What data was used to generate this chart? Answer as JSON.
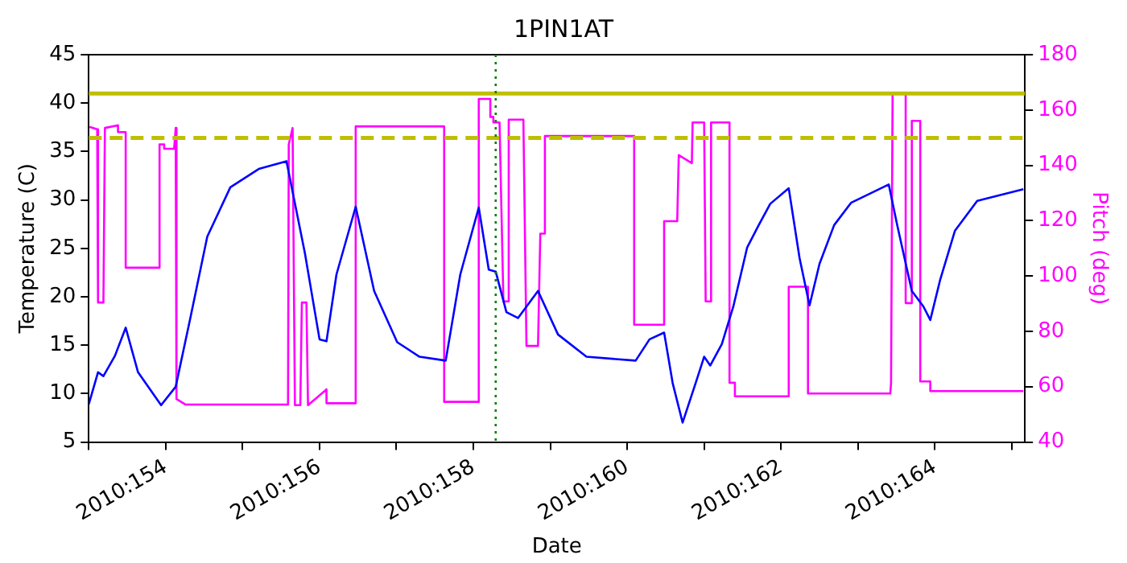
{
  "chart_data": {
    "type": "line",
    "title": "1PIN1AT",
    "xlabel": "Date",
    "ylabel": "Temperature (C)",
    "y2label": "Pitch (deg)",
    "xlim": [
      "2010-06-02T00:00",
      "2010-06-14T04:05"
    ],
    "xticks": [
      {
        "value": "2010-06-02",
        "label": null
      },
      {
        "value": "2010-06-03",
        "label": "2010:154"
      },
      {
        "value": "2010-06-04",
        "label": null
      },
      {
        "value": "2010-06-05",
        "label": "2010:156"
      },
      {
        "value": "2010-06-06",
        "label": null
      },
      {
        "value": "2010-06-07",
        "label": "2010:158"
      },
      {
        "value": "2010-06-08",
        "label": null
      },
      {
        "value": "2010-06-09",
        "label": "2010:160"
      },
      {
        "value": "2010-06-10",
        "label": null
      },
      {
        "value": "2010-06-11",
        "label": "2010:162"
      },
      {
        "value": "2010-06-12",
        "label": null
      },
      {
        "value": "2010-06-13",
        "label": "2010:164"
      },
      {
        "value": "2010-06-14",
        "label": null
      }
    ],
    "ylim": [
      5,
      45
    ],
    "yticks": [
      5,
      10,
      15,
      20,
      25,
      30,
      35,
      40,
      45
    ],
    "y2lim": [
      40,
      180
    ],
    "y2ticks": [
      40,
      60,
      80,
      100,
      120,
      140,
      160,
      180
    ],
    "grid": false,
    "marker": "none",
    "line_style": "solid",
    "series": [
      {
        "color": "#0000ff",
        "axis": "y",
        "x": [
          "2010-06-02T00:00",
          "2010-06-02T02:53",
          "2010-06-02T04:34",
          "2010-06-02T08:10",
          "2010-06-02T11:31",
          "2010-06-02T15:22",
          "2010-06-02T22:34",
          "2010-06-03T03:07",
          "2010-06-03T07:41",
          "2010-06-03T12:58",
          "2010-06-03T20:10",
          "2010-06-04T05:02",
          "2010-06-04T13:41",
          "2010-06-04T19:26",
          "2010-06-05T00:00",
          "2010-06-05T02:10",
          "2010-06-05T05:17",
          "2010-06-05T11:17",
          "2010-06-05T17:02",
          "2010-06-06T00:14",
          "2010-06-06T07:12",
          "2010-06-06T15:22",
          "2010-06-06T19:55",
          "2010-06-07T01:41",
          "2010-06-07T04:48",
          "2010-06-07T06:58",
          "2010-06-07T10:19",
          "2010-06-07T13:55",
          "2010-06-07T20:10",
          "2010-06-08T02:24",
          "2010-06-08T11:17",
          "2010-06-09T02:38",
          "2010-06-09T06:58",
          "2010-06-09T11:31",
          "2010-06-09T14:10",
          "2010-06-09T17:17",
          "2010-06-09T21:22",
          "2010-06-10T00:00",
          "2010-06-10T01:55",
          "2010-06-10T05:31",
          "2010-06-10T09:07",
          "2010-06-10T13:26",
          "2010-06-10T17:02",
          "2010-06-10T20:38",
          "2010-06-11T02:24",
          "2010-06-11T05:46",
          "2010-06-11T08:53",
          "2010-06-11T12:00",
          "2010-06-11T16:34",
          "2010-06-11T21:50",
          "2010-06-12T09:36",
          "2010-06-12T12:14",
          "2010-06-12T16:48",
          "2010-06-12T20:24",
          "2010-06-12T22:34",
          "2010-06-13T01:41",
          "2010-06-13T06:14",
          "2010-06-13T13:12",
          "2010-06-14T03:36"
        ],
        "values": [
          8.9,
          12.2,
          11.8,
          13.9,
          16.8,
          12.2,
          8.8,
          10.7,
          17.8,
          26.2,
          31.3,
          33.2,
          34.0,
          24.5,
          15.6,
          15.4,
          22.3,
          29.3,
          20.6,
          15.3,
          13.8,
          13.4,
          22.3,
          29.2,
          22.8,
          22.6,
          18.4,
          17.8,
          20.6,
          16.1,
          13.8,
          13.4,
          15.6,
          16.3,
          11.1,
          7.0,
          11.1,
          13.8,
          12.9,
          15.1,
          19.0,
          25.1,
          27.4,
          29.6,
          31.2,
          24.0,
          19.1,
          23.4,
          27.4,
          29.7,
          31.6,
          27.4,
          20.6,
          19.0,
          17.6,
          21.8,
          26.8,
          29.9,
          31.1
        ]
      },
      {
        "color": "#ff00ff",
        "axis": "y2",
        "x": [
          "2010-06-02T00:14",
          "2010-06-02T02:38",
          "2010-06-02T02:53",
          "2010-06-02T04:34",
          "2010-06-02T05:02",
          "2010-06-02T09:07",
          "2010-06-02T09:07",
          "2010-06-02T11:31",
          "2010-06-02T11:31",
          "2010-06-02T22:05",
          "2010-06-02T22:05",
          "2010-06-02T23:31",
          "2010-06-02T23:31",
          "2010-06-03T02:38",
          "2010-06-03T03:07",
          "2010-06-03T03:22",
          "2010-06-03T06:14",
          "2010-06-04T14:10",
          "2010-06-04T14:24",
          "2010-06-04T15:36",
          "2010-06-04T16:19",
          "2010-06-04T18:00",
          "2010-06-04T18:29",
          "2010-06-04T19:55",
          "2010-06-04T20:24",
          "2010-06-05T02:10",
          "2010-06-05T02:10",
          "2010-06-05T11:17",
          "2010-06-05T11:17",
          "2010-06-06T14:53",
          "2010-06-06T14:53",
          "2010-06-07T01:41",
          "2010-06-07T01:41",
          "2010-06-07T05:17",
          "2010-06-07T05:17",
          "2010-06-07T06:14",
          "2010-06-07T06:14",
          "2010-06-07T08:10",
          "2010-06-07T09:22",
          "2010-06-07T10:34",
          "2010-06-07T11:02",
          "2010-06-07T15:36",
          "2010-06-07T16:34",
          "2010-06-07T20:10",
          "2010-06-07T20:53",
          "2010-06-07T22:19",
          "2010-06-07T22:19",
          "2010-06-09T02:10",
          "2010-06-09T02:10",
          "2010-06-09T11:31",
          "2010-06-09T11:31",
          "2010-06-09T15:36",
          "2010-06-09T16:05",
          "2010-06-09T20:10",
          "2010-06-09T20:24",
          "2010-06-10T00:00",
          "2010-06-10T00:29",
          "2010-06-10T01:55",
          "2010-06-10T02:10",
          "2010-06-10T07:55",
          "2010-06-10T07:55",
          "2010-06-10T09:36",
          "2010-06-10T09:36",
          "2010-06-11T02:24",
          "2010-06-11T02:24",
          "2010-06-11T08:24",
          "2010-06-11T08:24",
          "2010-06-12T10:05",
          "2010-06-12T10:19",
          "2010-06-12T10:48",
          "2010-06-12T14:53",
          "2010-06-12T14:53",
          "2010-06-12T16:48",
          "2010-06-12T16:48",
          "2010-06-12T19:26",
          "2010-06-12T19:26",
          "2010-06-12T22:34",
          "2010-06-12T22:34",
          "2010-06-14T03:36"
        ],
        "values": [
          153.9,
          153.0,
          90.4,
          90.4,
          153.5,
          154.5,
          152.0,
          152.0,
          103.0,
          103.0,
          147.6,
          147.6,
          146.0,
          146.0,
          153.5,
          55.5,
          53.5,
          53.5,
          147.6,
          153.5,
          53.3,
          53.3,
          90.4,
          90.4,
          53.3,
          59.0,
          54.0,
          54.0,
          154.1,
          154.1,
          54.5,
          54.5,
          164.0,
          164.0,
          157.5,
          157.5,
          155.5,
          155.5,
          90.8,
          90.8,
          156.5,
          156.5,
          74.7,
          74.7,
          115.3,
          115.3,
          150.6,
          150.6,
          82.4,
          82.4,
          119.8,
          119.8,
          143.7,
          140.8,
          155.5,
          155.5,
          90.8,
          90.8,
          155.5,
          155.5,
          61.4,
          61.4,
          56.5,
          56.5,
          96.1,
          96.1,
          57.5,
          57.5,
          61.4,
          165.9,
          165.9,
          90.2,
          90.2,
          156.1,
          156.1,
          61.9,
          61.9,
          58.4,
          58.4
        ]
      }
    ],
    "ref_lines": [
      {
        "axis": "y",
        "value": 41.0,
        "color": "#bfbf00",
        "line_style": "solid"
      },
      {
        "axis": "y",
        "value": 36.4,
        "color": "#bfbf00",
        "line_style": "dashed"
      },
      {
        "axis": "x",
        "value": "2010-06-07T06:58",
        "color": "#008000",
        "line_style": "dotted"
      }
    ]
  }
}
